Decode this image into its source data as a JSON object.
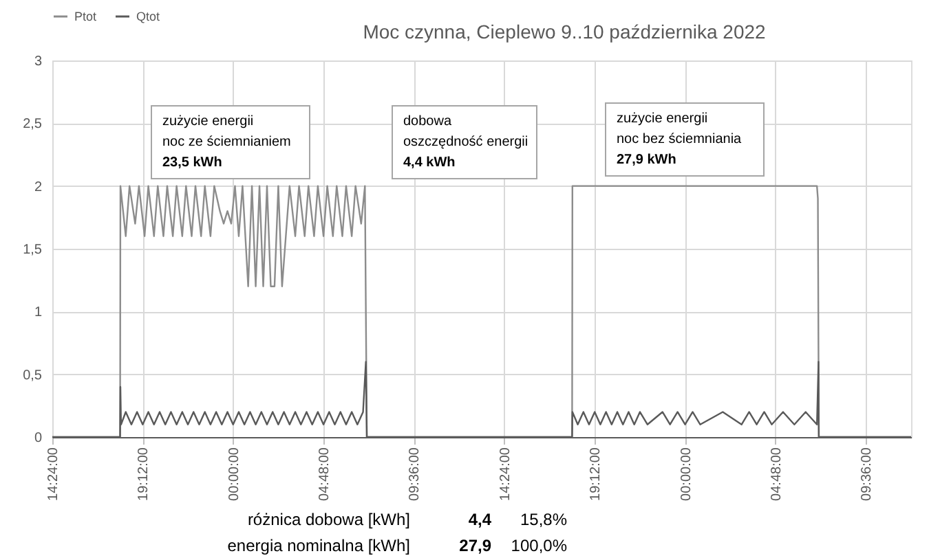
{
  "chart_data": {
    "type": "line",
    "title": "Moc czynna, Cieplewo 9..10 października 2022",
    "xlim": [
      "2022-10-09T14:24",
      "2022-10-11T12:00"
    ],
    "xticks": [
      {
        "value": "2022-10-09T14:24",
        "label": "14:24:00"
      },
      {
        "value": "2022-10-09T19:12",
        "label": "19:12:00"
      },
      {
        "value": "2022-10-10T00:00",
        "label": "00:00:00"
      },
      {
        "value": "2022-10-10T04:48",
        "label": "04:48:00"
      },
      {
        "value": "2022-10-10T09:36",
        "label": "09:36:00"
      },
      {
        "value": "2022-10-10T14:24",
        "label": "14:24:00"
      },
      {
        "value": "2022-10-10T19:12",
        "label": "19:12:00"
      },
      {
        "value": "2022-10-11T00:00",
        "label": "00:00:00"
      },
      {
        "value": "2022-10-11T04:48",
        "label": "04:48:00"
      },
      {
        "value": "2022-10-11T09:36",
        "label": "09:36:00"
      }
    ],
    "ylim": [
      0,
      3
    ],
    "yticks": [
      0,
      {
        "value": 0.5,
        "label": "0,5"
      },
      1,
      {
        "value": 1.5,
        "label": "1,5"
      },
      2,
      {
        "value": 2.5,
        "label": "2,5"
      },
      3
    ],
    "grid": true,
    "legend": "top left",
    "series": [
      {
        "name": "Ptot",
        "color": "#8c8c8c",
        "x": [
          "2022-10-09T14:24",
          "2022-10-09T18:00",
          "2022-10-09T18:01",
          "2022-10-09T18:18",
          "2022-10-09T18:30",
          "2022-10-09T18:48",
          "2022-10-09T19:00",
          "2022-10-09T19:18",
          "2022-10-09T19:30",
          "2022-10-09T19:48",
          "2022-10-09T20:00",
          "2022-10-09T20:18",
          "2022-10-09T20:30",
          "2022-10-09T20:48",
          "2022-10-09T21:00",
          "2022-10-09T21:18",
          "2022-10-09T21:30",
          "2022-10-09T21:48",
          "2022-10-09T22:00",
          "2022-10-09T22:18",
          "2022-10-09T22:30",
          "2022-10-09T22:48",
          "2022-10-09T23:00",
          "2022-10-09T23:18",
          "2022-10-09T23:30",
          "2022-10-09T23:42",
          "2022-10-09T23:54",
          "2022-10-10T00:06",
          "2022-10-10T00:18",
          "2022-10-10T00:30",
          "2022-10-10T00:48",
          "2022-10-10T01:00",
          "2022-10-10T01:12",
          "2022-10-10T01:24",
          "2022-10-10T01:36",
          "2022-10-10T01:48",
          "2022-10-10T02:00",
          "2022-10-10T02:12",
          "2022-10-10T02:24",
          "2022-10-10T02:36",
          "2022-10-10T02:48",
          "2022-10-10T03:00",
          "2022-10-10T03:18",
          "2022-10-10T03:30",
          "2022-10-10T03:48",
          "2022-10-10T04:00",
          "2022-10-10T04:18",
          "2022-10-10T04:30",
          "2022-10-10T04:48",
          "2022-10-10T05:00",
          "2022-10-10T05:18",
          "2022-10-10T05:30",
          "2022-10-10T05:48",
          "2022-10-10T06:00",
          "2022-10-10T06:18",
          "2022-10-10T06:30",
          "2022-10-10T06:48",
          "2022-10-10T07:00",
          "2022-10-10T07:06",
          "2022-10-10T18:00",
          "2022-10-10T18:01",
          "2022-10-11T07:00",
          "2022-10-11T07:03",
          "2022-10-11T07:06",
          "2022-10-11T12:00"
        ],
        "values": [
          0,
          0,
          2.0,
          1.6,
          2.0,
          1.7,
          2.0,
          1.6,
          2.0,
          1.6,
          2.0,
          1.6,
          2.0,
          1.6,
          2.0,
          1.6,
          2.0,
          1.6,
          2.0,
          1.6,
          2.0,
          1.6,
          2.0,
          1.8,
          1.7,
          1.8,
          1.7,
          2.0,
          1.6,
          2.0,
          1.2,
          2.0,
          1.2,
          2.0,
          1.2,
          2.0,
          1.2,
          1.2,
          2.0,
          1.2,
          1.6,
          2.0,
          1.6,
          2.0,
          1.6,
          2.0,
          1.6,
          2.0,
          1.6,
          2.0,
          1.6,
          2.0,
          1.6,
          2.0,
          1.6,
          2.0,
          1.7,
          2.0,
          0,
          0,
          2.0,
          2.0,
          1.9,
          0,
          0
        ]
      },
      {
        "name": "Qtot",
        "color": "#595959",
        "x": [
          "2022-10-09T14:24",
          "2022-10-09T18:00",
          "2022-10-09T18:01",
          "2022-10-09T18:03",
          "2022-10-09T18:18",
          "2022-10-09T18:36",
          "2022-10-09T18:54",
          "2022-10-09T19:12",
          "2022-10-09T19:30",
          "2022-10-09T19:48",
          "2022-10-09T20:06",
          "2022-10-09T20:24",
          "2022-10-09T20:42",
          "2022-10-09T21:00",
          "2022-10-09T21:18",
          "2022-10-09T21:36",
          "2022-10-09T21:54",
          "2022-10-09T22:12",
          "2022-10-09T22:30",
          "2022-10-09T22:48",
          "2022-10-09T23:06",
          "2022-10-09T23:24",
          "2022-10-09T23:42",
          "2022-10-10T00:00",
          "2022-10-10T00:18",
          "2022-10-10T00:36",
          "2022-10-10T00:54",
          "2022-10-10T01:12",
          "2022-10-10T01:30",
          "2022-10-10T01:48",
          "2022-10-10T02:06",
          "2022-10-10T02:24",
          "2022-10-10T02:42",
          "2022-10-10T03:00",
          "2022-10-10T03:18",
          "2022-10-10T03:36",
          "2022-10-10T03:54",
          "2022-10-10T04:12",
          "2022-10-10T04:30",
          "2022-10-10T04:48",
          "2022-10-10T05:06",
          "2022-10-10T05:24",
          "2022-10-10T05:42",
          "2022-10-10T06:00",
          "2022-10-10T06:18",
          "2022-10-10T06:36",
          "2022-10-10T06:54",
          "2022-10-10T07:03",
          "2022-10-10T07:06",
          "2022-10-10T18:00",
          "2022-10-10T18:01",
          "2022-10-10T18:18",
          "2022-10-10T18:36",
          "2022-10-10T18:54",
          "2022-10-10T19:12",
          "2022-10-10T19:30",
          "2022-10-10T19:48",
          "2022-10-10T20:06",
          "2022-10-10T20:24",
          "2022-10-10T20:42",
          "2022-10-10T21:00",
          "2022-10-10T21:18",
          "2022-10-10T21:36",
          "2022-10-10T22:00",
          "2022-10-10T22:48",
          "2022-10-10T23:12",
          "2022-10-10T23:36",
          "2022-10-11T00:00",
          "2022-10-11T00:24",
          "2022-10-11T00:48",
          "2022-10-11T02:00",
          "2022-10-11T03:00",
          "2022-10-11T03:24",
          "2022-10-11T03:48",
          "2022-10-11T04:12",
          "2022-10-11T04:36",
          "2022-10-11T05:12",
          "2022-10-11T05:48",
          "2022-10-11T06:24",
          "2022-10-11T07:00",
          "2022-10-11T07:05",
          "2022-10-11T07:06",
          "2022-10-11T12:00"
        ],
        "values": [
          0,
          0,
          0.4,
          0.1,
          0.2,
          0.1,
          0.2,
          0.1,
          0.2,
          0.1,
          0.2,
          0.1,
          0.2,
          0.1,
          0.2,
          0.1,
          0.2,
          0.1,
          0.2,
          0.1,
          0.2,
          0.1,
          0.2,
          0.1,
          0.2,
          0.1,
          0.2,
          0.1,
          0.2,
          0.1,
          0.2,
          0.1,
          0.2,
          0.1,
          0.2,
          0.1,
          0.2,
          0.1,
          0.2,
          0.1,
          0.2,
          0.1,
          0.2,
          0.1,
          0.2,
          0.1,
          0.2,
          0.6,
          0,
          0,
          0.2,
          0.1,
          0.2,
          0.1,
          0.2,
          0.1,
          0.2,
          0.1,
          0.2,
          0.1,
          0.2,
          0.1,
          0.2,
          0.1,
          0.2,
          0.1,
          0.2,
          0.1,
          0.2,
          0.1,
          0.2,
          0.1,
          0.2,
          0.1,
          0.2,
          0.1,
          0.2,
          0.1,
          0.2,
          0.1,
          0.6,
          0,
          0
        ]
      }
    ],
    "annotations": [
      "zużycie energii\nnoc ze ściemnianiem\n23,5 kWh",
      "dobowa\noszczędność energii\n4,4 kWh",
      "zużycie energii\nnoc bez ściemniania\n27,9 kWh",
      "różnica dobowa [kWh]",
      "4,4",
      "15,8%",
      "energia nominalna [kWh]",
      "27,9",
      "100,0%"
    ]
  }
}
